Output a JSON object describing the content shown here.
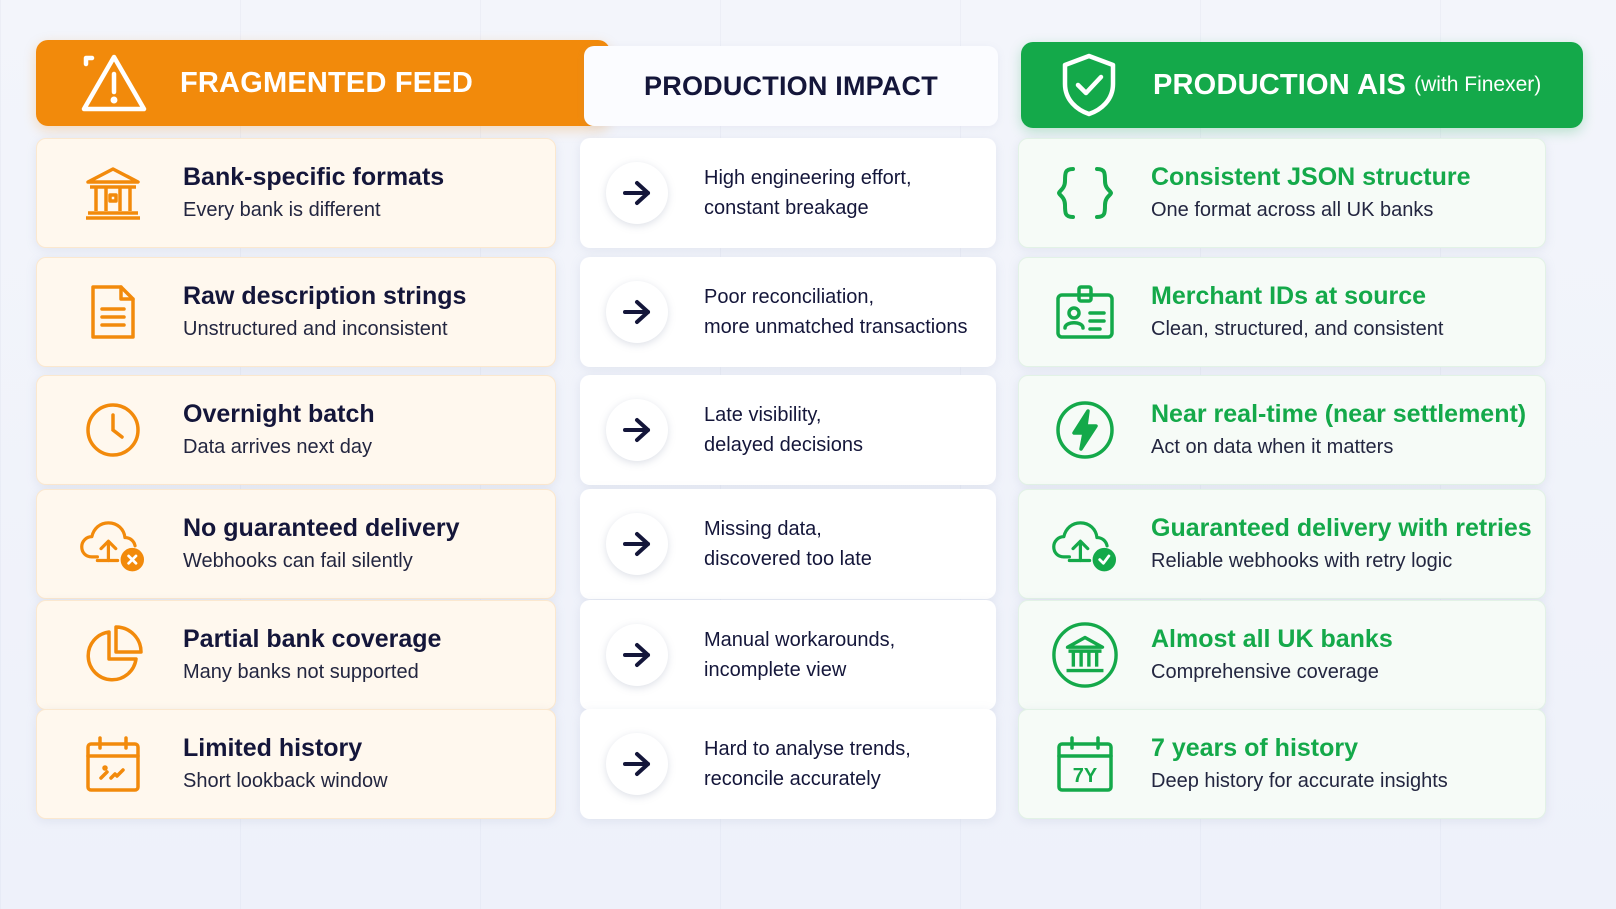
{
  "colors": {
    "orange": "#f28a0b",
    "green": "#14a94a",
    "navy": "#14163a"
  },
  "headers": {
    "left": {
      "title": "FRAGMENTED FEED",
      "icon": "warning-triangle-icon"
    },
    "center": {
      "title": "PRODUCTION IMPACT"
    },
    "right": {
      "title": "PRODUCTION AIS",
      "subtitle": "(with Finexer)",
      "icon": "shield-check-icon"
    }
  },
  "rows": [
    {
      "left": {
        "title": "Bank-specific formats",
        "desc": "Every bank is different",
        "icon": "bank-building-icon"
      },
      "impact": {
        "line1": "High engineering effort,",
        "line2": "constant breakage"
      },
      "right": {
        "title": "Consistent JSON structure",
        "desc": "One format across all UK banks",
        "icon": "curly-braces-icon"
      }
    },
    {
      "left": {
        "title": "Raw description strings",
        "desc": "Unstructured and inconsistent",
        "icon": "document-icon"
      },
      "impact": {
        "line1": "Poor reconciliation,",
        "line2": "more unmatched transactions"
      },
      "right": {
        "title": "Merchant IDs at source",
        "desc": "Clean, structured, and consistent",
        "icon": "id-badge-icon"
      }
    },
    {
      "left": {
        "title": "Overnight batch",
        "desc": "Data arrives next day",
        "icon": "clock-icon"
      },
      "impact": {
        "line1": "Late visibility,",
        "line2": "delayed decisions"
      },
      "right": {
        "title": "Near real-time (near settlement)",
        "desc": "Act on data when it matters",
        "icon": "lightning-bolt-icon"
      }
    },
    {
      "left": {
        "title": "No guaranteed delivery",
        "desc": "Webhooks can fail silently",
        "icon": "cloud-upload-fail-icon"
      },
      "impact": {
        "line1": "Missing data,",
        "line2": "discovered too late"
      },
      "right": {
        "title": "Guaranteed delivery with retries",
        "desc": "Reliable webhooks with retry logic",
        "icon": "cloud-upload-check-icon"
      }
    },
    {
      "left": {
        "title": "Partial bank coverage",
        "desc": "Many banks not supported",
        "icon": "pie-chart-icon"
      },
      "impact": {
        "line1": "Manual workarounds,",
        "line2": "incomplete view"
      },
      "right": {
        "title": "Almost all UK banks",
        "desc": "Comprehensive coverage",
        "icon": "bank-circle-icon"
      }
    },
    {
      "left": {
        "title": "Limited history",
        "desc": "Short lookback window",
        "icon": "calendar-icon"
      },
      "impact": {
        "line1": "Hard to analyse trends,",
        "line2": "reconcile accurately"
      },
      "right": {
        "title": "7 years of history",
        "desc": "Deep history for accurate insights",
        "icon": "calendar-7y-icon",
        "icon_label": "7Y"
      }
    }
  ]
}
